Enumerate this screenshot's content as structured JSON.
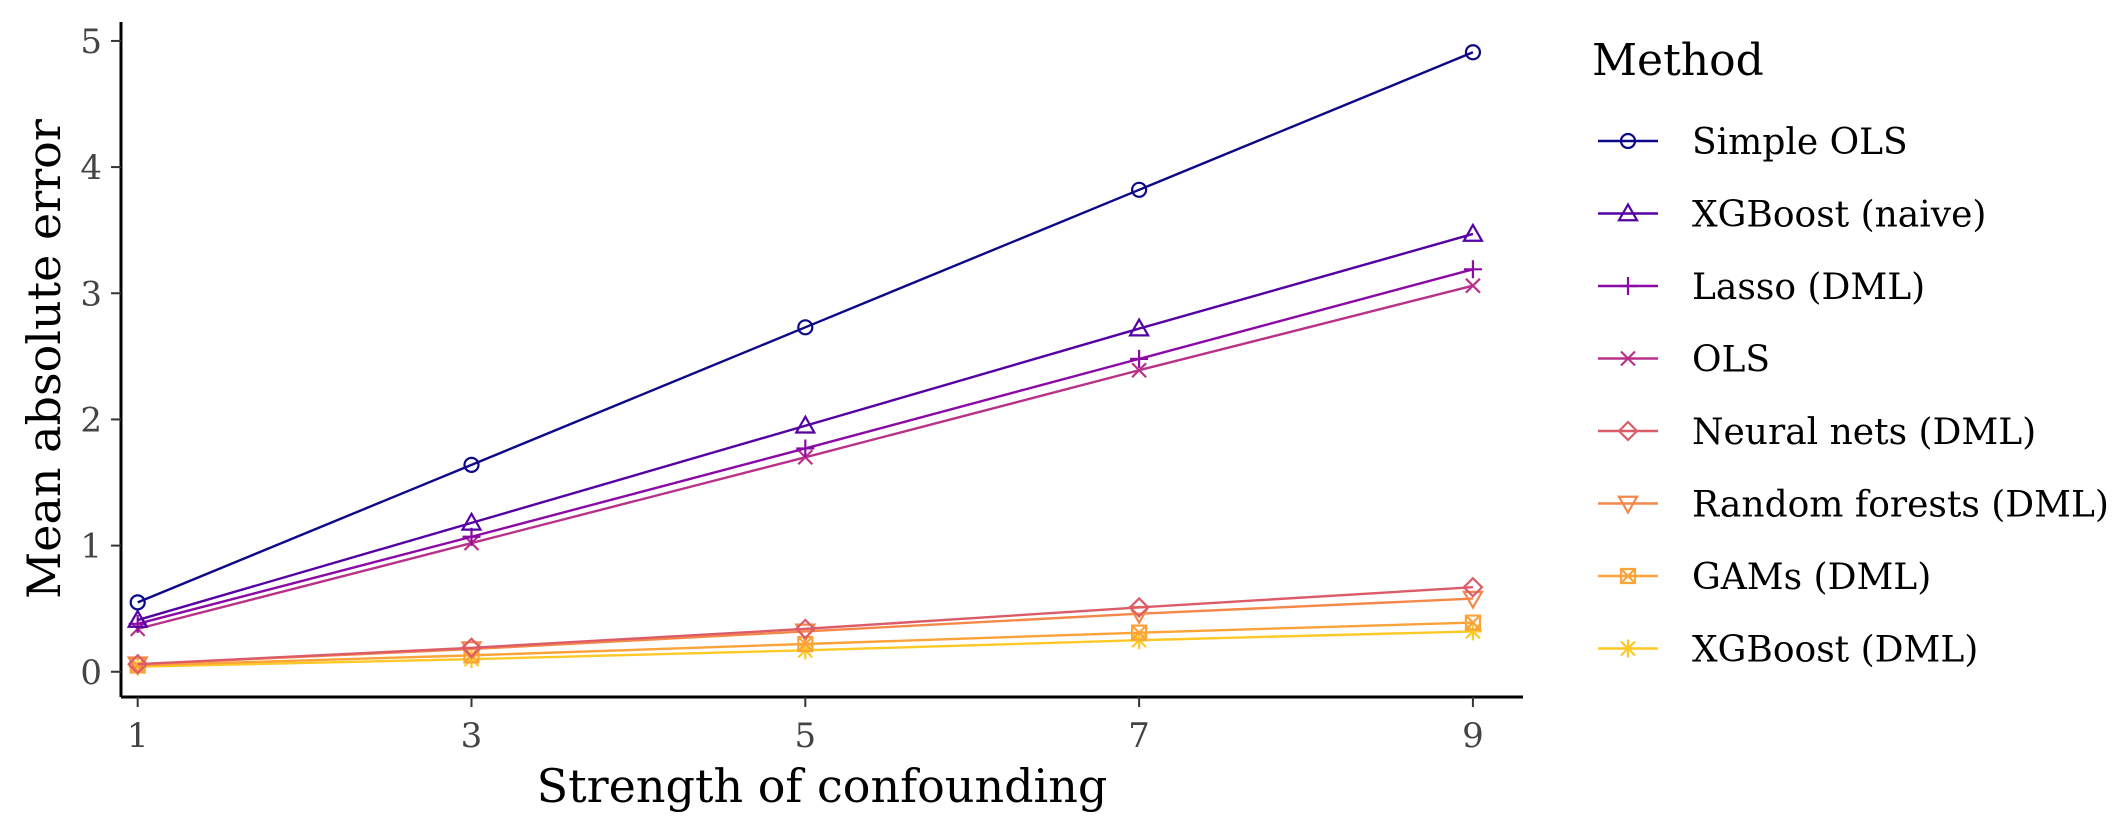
{
  "chart_data": {
    "type": "line",
    "title": "",
    "xlabel": "Strength of confounding",
    "ylabel": "Mean absolute error",
    "x": [
      1,
      3,
      5,
      7,
      9
    ],
    "xticks": [
      1,
      3,
      5,
      7,
      9
    ],
    "yticks": [
      0,
      1,
      2,
      3,
      4,
      5
    ],
    "xlim": [
      0.9,
      9.3
    ],
    "ylim": [
      -0.2,
      5.15
    ],
    "grid": false,
    "legend": {
      "title": "Method",
      "position": "right"
    },
    "series": [
      {
        "name": "Simple OLS",
        "marker": "circle",
        "color": "#0d0887",
        "values": [
          0.55,
          1.64,
          2.73,
          3.82,
          4.91
        ]
      },
      {
        "name": "XGBoost (naive)",
        "marker": "triangle-up",
        "color": "#5402a3",
        "values": [
          0.41,
          1.18,
          1.95,
          2.72,
          3.47
        ]
      },
      {
        "name": "Lasso (DML)",
        "marker": "plus",
        "color": "#8b0aa5",
        "values": [
          0.38,
          1.07,
          1.77,
          2.48,
          3.19
        ]
      },
      {
        "name": "OLS",
        "marker": "cross",
        "color": "#b93289",
        "values": [
          0.34,
          1.02,
          1.7,
          2.39,
          3.06
        ]
      },
      {
        "name": "Neural nets (DML)",
        "marker": "diamond",
        "color": "#db5c68",
        "values": [
          0.06,
          0.19,
          0.34,
          0.51,
          0.67
        ]
      },
      {
        "name": "Random forests (DML)",
        "marker": "triangle-down",
        "color": "#f48849",
        "values": [
          0.06,
          0.18,
          0.32,
          0.46,
          0.58
        ]
      },
      {
        "name": "GAMs (DML)",
        "marker": "square-cross",
        "color": "#fba238",
        "values": [
          0.05,
          0.13,
          0.22,
          0.31,
          0.39
        ]
      },
      {
        "name": "XGBoost (DML)",
        "marker": "asterisk",
        "color": "#fdc926",
        "values": [
          0.04,
          0.1,
          0.17,
          0.25,
          0.32
        ]
      }
    ]
  }
}
